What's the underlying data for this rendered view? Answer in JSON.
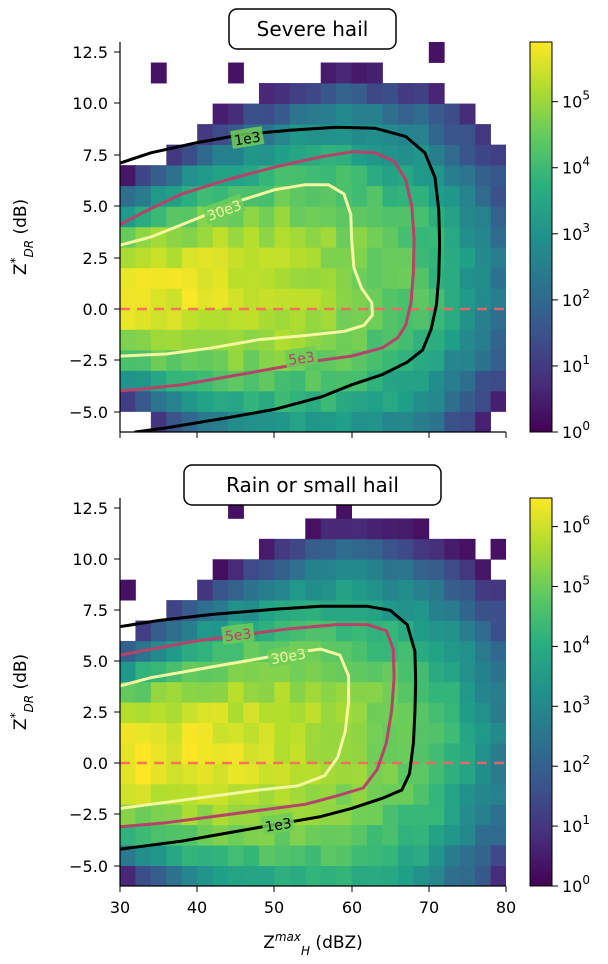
{
  "chart_data": [
    {
      "type": "heatmap",
      "title": "Severe hail",
      "xlabel": "",
      "ylabel": "Z*_DR (dB)",
      "xlim": [
        30,
        80
      ],
      "ylim": [
        -6,
        13
      ],
      "x_ticks": [
        "30",
        "40",
        "50",
        "60",
        "70",
        "80"
      ],
      "y_ticks": [
        "−5.0",
        "−2.5",
        "0.0",
        "2.5",
        "5.0",
        "7.5",
        "10.0",
        "12.5"
      ],
      "colorscale": "viridis",
      "color_scale_type": "log",
      "colorbar_range": [
        1,
        800000
      ],
      "colorbar_ticks": [
        {
          "base": "10",
          "exp": "0",
          "value": 1
        },
        {
          "base": "10",
          "exp": "1",
          "value": 10
        },
        {
          "base": "10",
          "exp": "2",
          "value": 100
        },
        {
          "base": "10",
          "exp": "3",
          "value": 1000
        },
        {
          "base": "10",
          "exp": "4",
          "value": 10000
        },
        {
          "base": "10",
          "exp": "5",
          "value": 100000
        }
      ],
      "reference_line": {
        "y": 0,
        "color": "#ff6060",
        "style": "dashed"
      },
      "density_model": {
        "peak": 600000,
        "zdr_center": 0.7
      },
      "contours": [
        {
          "label": "1e3",
          "color": "#000000",
          "points": [
            [
              30,
              7.1
            ],
            [
              34,
              7.6
            ],
            [
              40,
              8.1
            ],
            [
              46,
              8.5
            ],
            [
              52,
              8.7
            ],
            [
              58,
              8.85
            ],
            [
              63,
              8.8
            ],
            [
              67,
              8.4
            ],
            [
              69.5,
              7.6
            ],
            [
              70.8,
              6.4
            ],
            [
              71.3,
              4.8
            ],
            [
              71.4,
              3.2
            ],
            [
              71.3,
              1.6
            ],
            [
              71,
              0.2
            ],
            [
              70.3,
              -1.0
            ],
            [
              69.2,
              -2.0
            ],
            [
              67.2,
              -2.6
            ],
            [
              64,
              -3.2
            ],
            [
              60,
              -3.7
            ],
            [
              56,
              -4.3
            ],
            [
              50,
              -4.9
            ],
            [
              44,
              -5.3
            ],
            [
              36,
              -5.8
            ],
            [
              32,
              -6.0
            ]
          ]
        },
        {
          "label": "5e3",
          "color": "#b5436a",
          "points": [
            [
              30,
              4.1
            ],
            [
              33,
              4.7
            ],
            [
              38,
              5.6
            ],
            [
              44,
              6.3
            ],
            [
              50,
              6.9
            ],
            [
              56,
              7.4
            ],
            [
              60,
              7.65
            ],
            [
              63,
              7.6
            ],
            [
              65.5,
              7.2
            ],
            [
              67,
              6.3
            ],
            [
              67.8,
              5.0
            ],
            [
              68.1,
              3.4
            ],
            [
              68,
              1.8
            ],
            [
              67.7,
              0.3
            ],
            [
              67,
              -0.8
            ],
            [
              66,
              -1.4
            ],
            [
              64,
              -1.9
            ],
            [
              60,
              -2.3
            ],
            [
              56,
              -2.5
            ],
            [
              50,
              -2.9
            ],
            [
              44,
              -3.3
            ],
            [
              38,
              -3.7
            ],
            [
              33,
              -3.9
            ],
            [
              30,
              -4.0
            ]
          ]
        },
        {
          "label": "30e3",
          "color": "#f4f6a0",
          "points": [
            [
              30,
              3.1
            ],
            [
              34,
              3.5
            ],
            [
              40,
              4.4
            ],
            [
              45,
              5.2
            ],
            [
              50,
              5.8
            ],
            [
              54,
              6.05
            ],
            [
              57,
              6.05
            ],
            [
              59,
              5.6
            ],
            [
              59.9,
              4.6
            ],
            [
              60,
              3.4
            ],
            [
              60.3,
              2.0
            ],
            [
              61.3,
              1.0
            ],
            [
              62.6,
              0.3
            ],
            [
              62.7,
              -0.3
            ],
            [
              61.6,
              -0.8
            ],
            [
              59,
              -1.1
            ],
            [
              54,
              -1.3
            ],
            [
              48,
              -1.5
            ],
            [
              42,
              -1.9
            ],
            [
              36,
              -2.2
            ],
            [
              30,
              -2.3
            ]
          ]
        }
      ],
      "contour_labels": [
        {
          "text": "1e3",
          "x": 46.5,
          "y": 8.3,
          "angle": -9,
          "color": "#000000"
        },
        {
          "text": "5e3",
          "x": 53.5,
          "y": -2.4,
          "angle": -8,
          "color": "#b5436a"
        },
        {
          "text": "30e3",
          "x": 43.5,
          "y": 4.8,
          "angle": -20,
          "color": "#f4f6a0"
        }
      ]
    },
    {
      "type": "heatmap",
      "title": "Rain or small hail",
      "xlabel": "Z_H^max (dBZ)",
      "ylabel": "Z*_DR (dB)",
      "xlim": [
        30,
        80
      ],
      "ylim": [
        -6,
        13
      ],
      "x_ticks": [
        "30",
        "40",
        "50",
        "60",
        "70",
        "80"
      ],
      "y_ticks": [
        "−5.0",
        "−2.5",
        "0.0",
        "2.5",
        "5.0",
        "7.5",
        "10.0",
        "12.5"
      ],
      "colorscale": "viridis",
      "color_scale_type": "log",
      "colorbar_range": [
        1,
        3000000
      ],
      "colorbar_ticks": [
        {
          "base": "10",
          "exp": "0",
          "value": 1
        },
        {
          "base": "10",
          "exp": "1",
          "value": 10
        },
        {
          "base": "10",
          "exp": "2",
          "value": 100
        },
        {
          "base": "10",
          "exp": "3",
          "value": 1000
        },
        {
          "base": "10",
          "exp": "4",
          "value": 10000
        },
        {
          "base": "10",
          "exp": "5",
          "value": 100000
        },
        {
          "base": "10",
          "exp": "6",
          "value": 1000000
        }
      ],
      "reference_line": {
        "y": 0,
        "color": "#ff6060",
        "style": "dashed"
      },
      "density_model": {
        "peak": 2500000,
        "zdr_center": 0.3
      },
      "contours": [
        {
          "label": "1e3",
          "color": "#000000",
          "points": [
            [
              30,
              6.7
            ],
            [
              35,
              7.0
            ],
            [
              42,
              7.3
            ],
            [
              50,
              7.55
            ],
            [
              56,
              7.7
            ],
            [
              62,
              7.7
            ],
            [
              65,
              7.5
            ],
            [
              67.2,
              6.8
            ],
            [
              68.2,
              5.5
            ],
            [
              68.3,
              4.0
            ],
            [
              68.2,
              2.5
            ],
            [
              68,
              1.0
            ],
            [
              67.5,
              -0.5
            ],
            [
              66.5,
              -1.3
            ],
            [
              64,
              -1.7
            ],
            [
              60,
              -2.2
            ],
            [
              56,
              -2.6
            ],
            [
              50,
              -3.0
            ],
            [
              44,
              -3.4
            ],
            [
              38,
              -3.8
            ],
            [
              32,
              -4.1
            ],
            [
              30,
              -4.2
            ]
          ]
        },
        {
          "label": "5e3",
          "color": "#b5436a",
          "points": [
            [
              30,
              5.3
            ],
            [
              34,
              5.6
            ],
            [
              40,
              6.0
            ],
            [
              46,
              6.3
            ],
            [
              52,
              6.6
            ],
            [
              58,
              6.8
            ],
            [
              62,
              6.8
            ],
            [
              64.5,
              6.5
            ],
            [
              65.4,
              5.6
            ],
            [
              65.5,
              4.2
            ],
            [
              65.2,
              2.6
            ],
            [
              64.5,
              1.0
            ],
            [
              63.3,
              -0.3
            ],
            [
              61.5,
              -1.2
            ],
            [
              58,
              -1.6
            ],
            [
              54,
              -2.0
            ],
            [
              48,
              -2.3
            ],
            [
              42,
              -2.6
            ],
            [
              36,
              -2.9
            ],
            [
              30,
              -3.1
            ]
          ]
        },
        {
          "label": "30e3",
          "color": "#f4f6a0",
          "points": [
            [
              30,
              3.8
            ],
            [
              34,
              4.2
            ],
            [
              40,
              4.6
            ],
            [
              46,
              5.0
            ],
            [
              52,
              5.4
            ],
            [
              56,
              5.6
            ],
            [
              58.5,
              5.3
            ],
            [
              59.6,
              4.3
            ],
            [
              59.6,
              3.0
            ],
            [
              59.2,
              1.6
            ],
            [
              58.2,
              0.3
            ],
            [
              56.5,
              -0.6
            ],
            [
              53,
              -1.1
            ],
            [
              48,
              -1.3
            ],
            [
              42,
              -1.6
            ],
            [
              36,
              -1.9
            ],
            [
              30,
              -2.2
            ]
          ]
        }
      ],
      "contour_labels": [
        {
          "text": "1e3",
          "x": 50.5,
          "y": -3.0,
          "angle": -9,
          "color": "#000000"
        },
        {
          "text": "5e3",
          "x": 45.3,
          "y": 6.3,
          "angle": -7,
          "color": "#b5436a"
        },
        {
          "text": "30e3",
          "x": 51.8,
          "y": 5.25,
          "angle": -10,
          "color": "#f4f6a0"
        }
      ]
    }
  ]
}
